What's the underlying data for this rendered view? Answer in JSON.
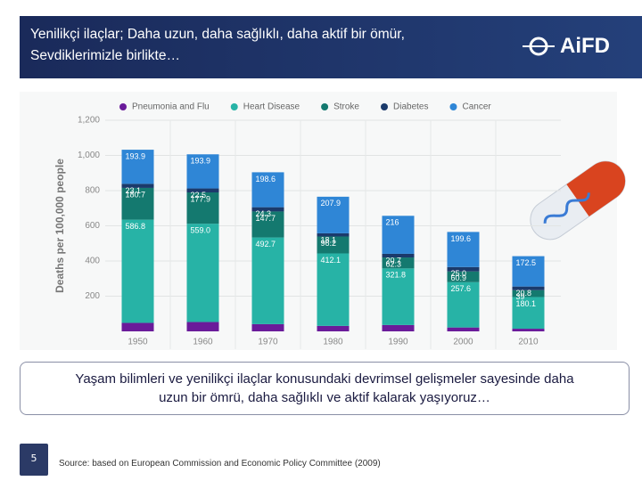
{
  "header": {
    "title_lines": [
      "Yenilikçi ilaçlar; Daha uzun, daha sağlıklı, daha aktif bir ömür,",
      "Sevdiklerimizle birlikte…"
    ],
    "logo": "AiFD"
  },
  "chart_data": {
    "type": "bar",
    "stacked": true,
    "legend": "top",
    "grid": true,
    "y_label": "Deaths per 100,000 people",
    "categories": [
      "1950",
      "1960",
      "1970",
      "1980",
      "1990",
      "2000",
      "2010"
    ],
    "ylim": [
      0,
      1200
    ],
    "yticks": [
      200,
      400,
      600,
      800,
      {
        "value": 1000,
        "label": "1,000"
      },
      {
        "value": 1200,
        "label": "1,200"
      }
    ],
    "series": [
      {
        "name": "Pneumonia and Flu",
        "color": "#6a1b9a",
        "values": [
          48,
          53,
          41,
          31,
          36,
          22,
          15
        ]
      },
      {
        "name": "Heart Disease",
        "color": "#27b3a6",
        "values": [
          586.8,
          559.0,
          492.7,
          412.1,
          321.8,
          257.6,
          180.1
        ],
        "value_labels": [
          "586.8",
          "559.0",
          "492.7",
          "412.1",
          "321.8",
          "257.6",
          "180.1"
        ]
      },
      {
        "name": "Stroke",
        "color": "#14796f",
        "values": [
          180.7,
          177.9,
          147.7,
          96.2,
          62.3,
          60.9,
          39
        ],
        "value_labels": [
          "180.7",
          "177.9",
          "147.7",
          "96.2",
          "62.3",
          "60.9",
          "39"
        ]
      },
      {
        "name": "Diabetes",
        "color": "#1b3a6b",
        "values": [
          23.1,
          22.5,
          24.3,
          18.1,
          20.7,
          25.0,
          20.8
        ],
        "value_labels": [
          "23.1",
          "22.5",
          "24.3",
          "18.1",
          "20.7",
          "25.0",
          "20.8"
        ]
      },
      {
        "name": "Cancer",
        "color": "#2f86d6",
        "values": [
          193.9,
          193.9,
          198.6,
          207.9,
          216,
          199.6,
          172.5
        ],
        "value_labels": [
          "193.9",
          "193.9",
          "198.6",
          "207.9",
          "216",
          "199.6",
          "172.5"
        ]
      }
    ]
  },
  "caption_lines": [
    "Yaşam bilimleri ve yenilikçi ilaçlar konusundaki devrimsel gelişmeler sayesinde daha",
    "uzun bir ömrü, daha sağlıklı ve aktif kalarak yaşıyoruz…"
  ],
  "slide_number": 5,
  "source": "Source: based on European Commission and Economic Policy Committee (2009)"
}
